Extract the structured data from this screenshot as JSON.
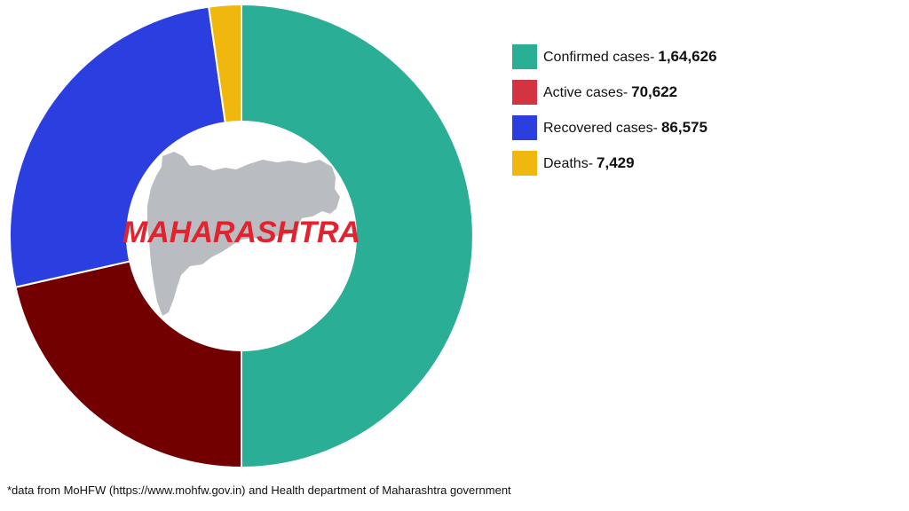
{
  "chart_data": {
    "type": "pie",
    "donut": true,
    "center_label": "MAHARASHTRA",
    "slices": [
      {
        "name": "Confirmed cases-",
        "value_label": "1,64,626",
        "value": 164626,
        "color": "#2bae96",
        "legend_color": "#2bae96"
      },
      {
        "name": "Active cases-",
        "value_label": "70,622",
        "value": 70622,
        "color": "#730000",
        "legend_color": "#d4343f"
      },
      {
        "name": "Recovered cases-",
        "value_label": "86,575",
        "value": 86575,
        "color": "#2b3fe0",
        "legend_color": "#2b3fe0"
      },
      {
        "name": "Deaths-",
        "value_label": "7,429",
        "value": 7429,
        "color": "#f0b70e",
        "legend_color": "#f0b70e"
      }
    ],
    "legend_position": "right",
    "center_label_color": "#e2222e",
    "map_color": "#b9bcc1"
  },
  "footnote": "*data from MoHFW (https://www.mohfw.gov.in) and Health department of Maharashtra government"
}
